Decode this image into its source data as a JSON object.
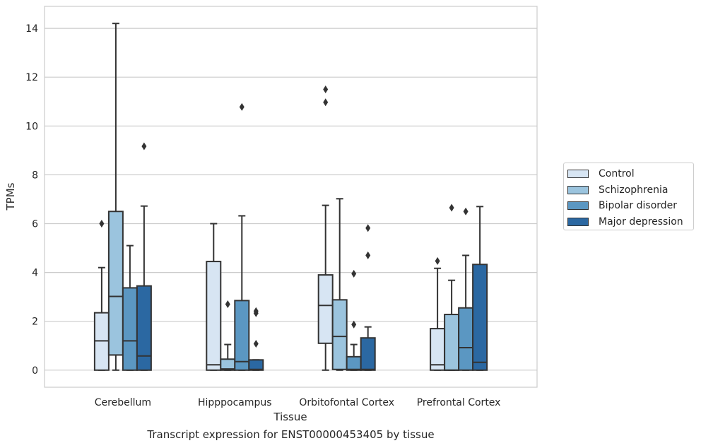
{
  "chart_data": {
    "type": "box",
    "xlabel": "Tissue",
    "ylabel": "TPMs",
    "caption": "Transcript expression for ENST00000453405 by tissue",
    "ylim": [
      -0.7,
      14.9
    ],
    "yticks": [
      0,
      2,
      4,
      6,
      8,
      10,
      12,
      14
    ],
    "grid": "horizontal",
    "legend_position": "right",
    "categories": [
      "Cerebellum",
      "Hipppocampus",
      "Orbitofontal Cortex",
      "Prefrontal Cortex"
    ],
    "series": [
      {
        "name": "Control",
        "color": "#d7e5f3",
        "boxes": [
          {
            "whisker_low": 0,
            "q1": 0,
            "median": 1.2,
            "q3": 2.35,
            "whisker_high": 4.2,
            "outliers": [
              6.0
            ]
          },
          {
            "whisker_low": 0,
            "q1": 0,
            "median": 0.22,
            "q3": 4.45,
            "whisker_high": 6.0,
            "outliers": []
          },
          {
            "whisker_low": 0,
            "q1": 1.1,
            "median": 2.65,
            "q3": 3.9,
            "whisker_high": 6.75,
            "outliers": [
              10.97,
              11.5
            ]
          },
          {
            "whisker_low": 0,
            "q1": 0,
            "median": 0.22,
            "q3": 1.7,
            "whisker_high": 4.17,
            "outliers": [
              4.47
            ]
          }
        ]
      },
      {
        "name": "Schizophrenia",
        "color": "#9bc4de",
        "boxes": [
          {
            "whisker_low": 0,
            "q1": 0.62,
            "median": 3.02,
            "q3": 6.5,
            "whisker_high": 14.2,
            "outliers": []
          },
          {
            "whisker_low": 0,
            "q1": 0,
            "median": 0.05,
            "q3": 0.45,
            "whisker_high": 1.05,
            "outliers": [
              2.7
            ]
          },
          {
            "whisker_low": 0,
            "q1": 0.03,
            "median": 1.38,
            "q3": 2.88,
            "whisker_high": 7.02,
            "outliers": []
          },
          {
            "whisker_low": 0,
            "q1": 0,
            "median": 0,
            "q3": 2.28,
            "whisker_high": 3.68,
            "outliers": [
              6.65
            ]
          }
        ]
      },
      {
        "name": "Bipolar disorder",
        "color": "#5b97c2",
        "boxes": [
          {
            "whisker_low": 0,
            "q1": 0,
            "median": 1.2,
            "q3": 3.37,
            "whisker_high": 5.1,
            "outliers": []
          },
          {
            "whisker_low": 0,
            "q1": 0,
            "median": 0.35,
            "q3": 2.85,
            "whisker_high": 6.32,
            "outliers": [
              10.78
            ]
          },
          {
            "whisker_low": 0,
            "q1": 0,
            "median": 0.03,
            "q3": 0.55,
            "whisker_high": 1.05,
            "outliers": [
              1.87,
              3.95
            ]
          },
          {
            "whisker_low": 0,
            "q1": 0,
            "median": 0.92,
            "q3": 2.55,
            "whisker_high": 4.7,
            "outliers": [
              6.5
            ]
          }
        ]
      },
      {
        "name": "Major depression",
        "color": "#2b68a2",
        "boxes": [
          {
            "whisker_low": 0,
            "q1": 0,
            "median": 0.58,
            "q3": 3.45,
            "whisker_high": 6.72,
            "outliers": [
              9.17
            ]
          },
          {
            "whisker_low": 0,
            "q1": 0,
            "median": 0.03,
            "q3": 0.42,
            "whisker_high": 0.42,
            "outliers": [
              1.08,
              2.33,
              2.42
            ]
          },
          {
            "whisker_low": 0,
            "q1": 0,
            "median": 0.03,
            "q3": 1.32,
            "whisker_high": 1.77,
            "outliers": [
              4.7,
              5.82
            ]
          },
          {
            "whisker_low": 0,
            "q1": 0,
            "median": 0.32,
            "q3": 4.33,
            "whisker_high": 6.7,
            "outliers": []
          }
        ]
      }
    ]
  }
}
